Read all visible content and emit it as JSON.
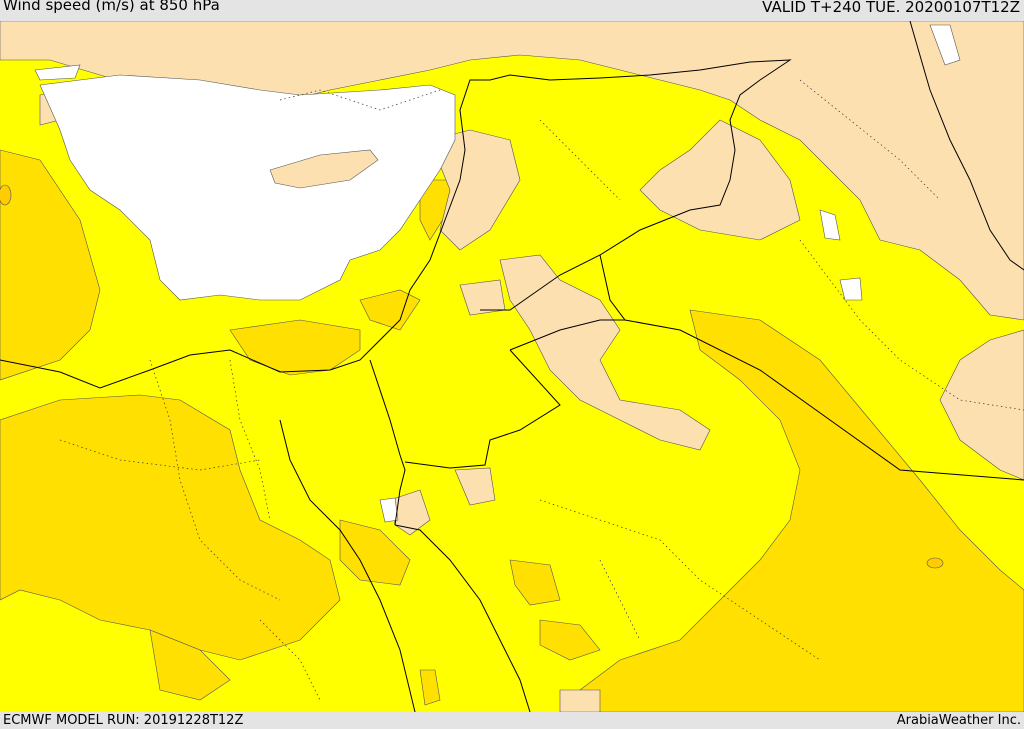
{
  "header": {
    "title": "Wind speed (m/s) at 850 hPa",
    "valid_time": "VALID T+240 TUE. 20200107T12Z"
  },
  "footer": {
    "model_run": "ECMWF MODEL RUN: 20191228T12Z",
    "credit": "ArabiaWeather Inc."
  },
  "colors": {
    "sea_calm": "#ffffff",
    "land_calm": "#fde0b0",
    "light_wind": "#ffff00",
    "moderate_wind": "#ffe000",
    "strong_wind": "#ffcc00",
    "borders": "#000000"
  }
}
